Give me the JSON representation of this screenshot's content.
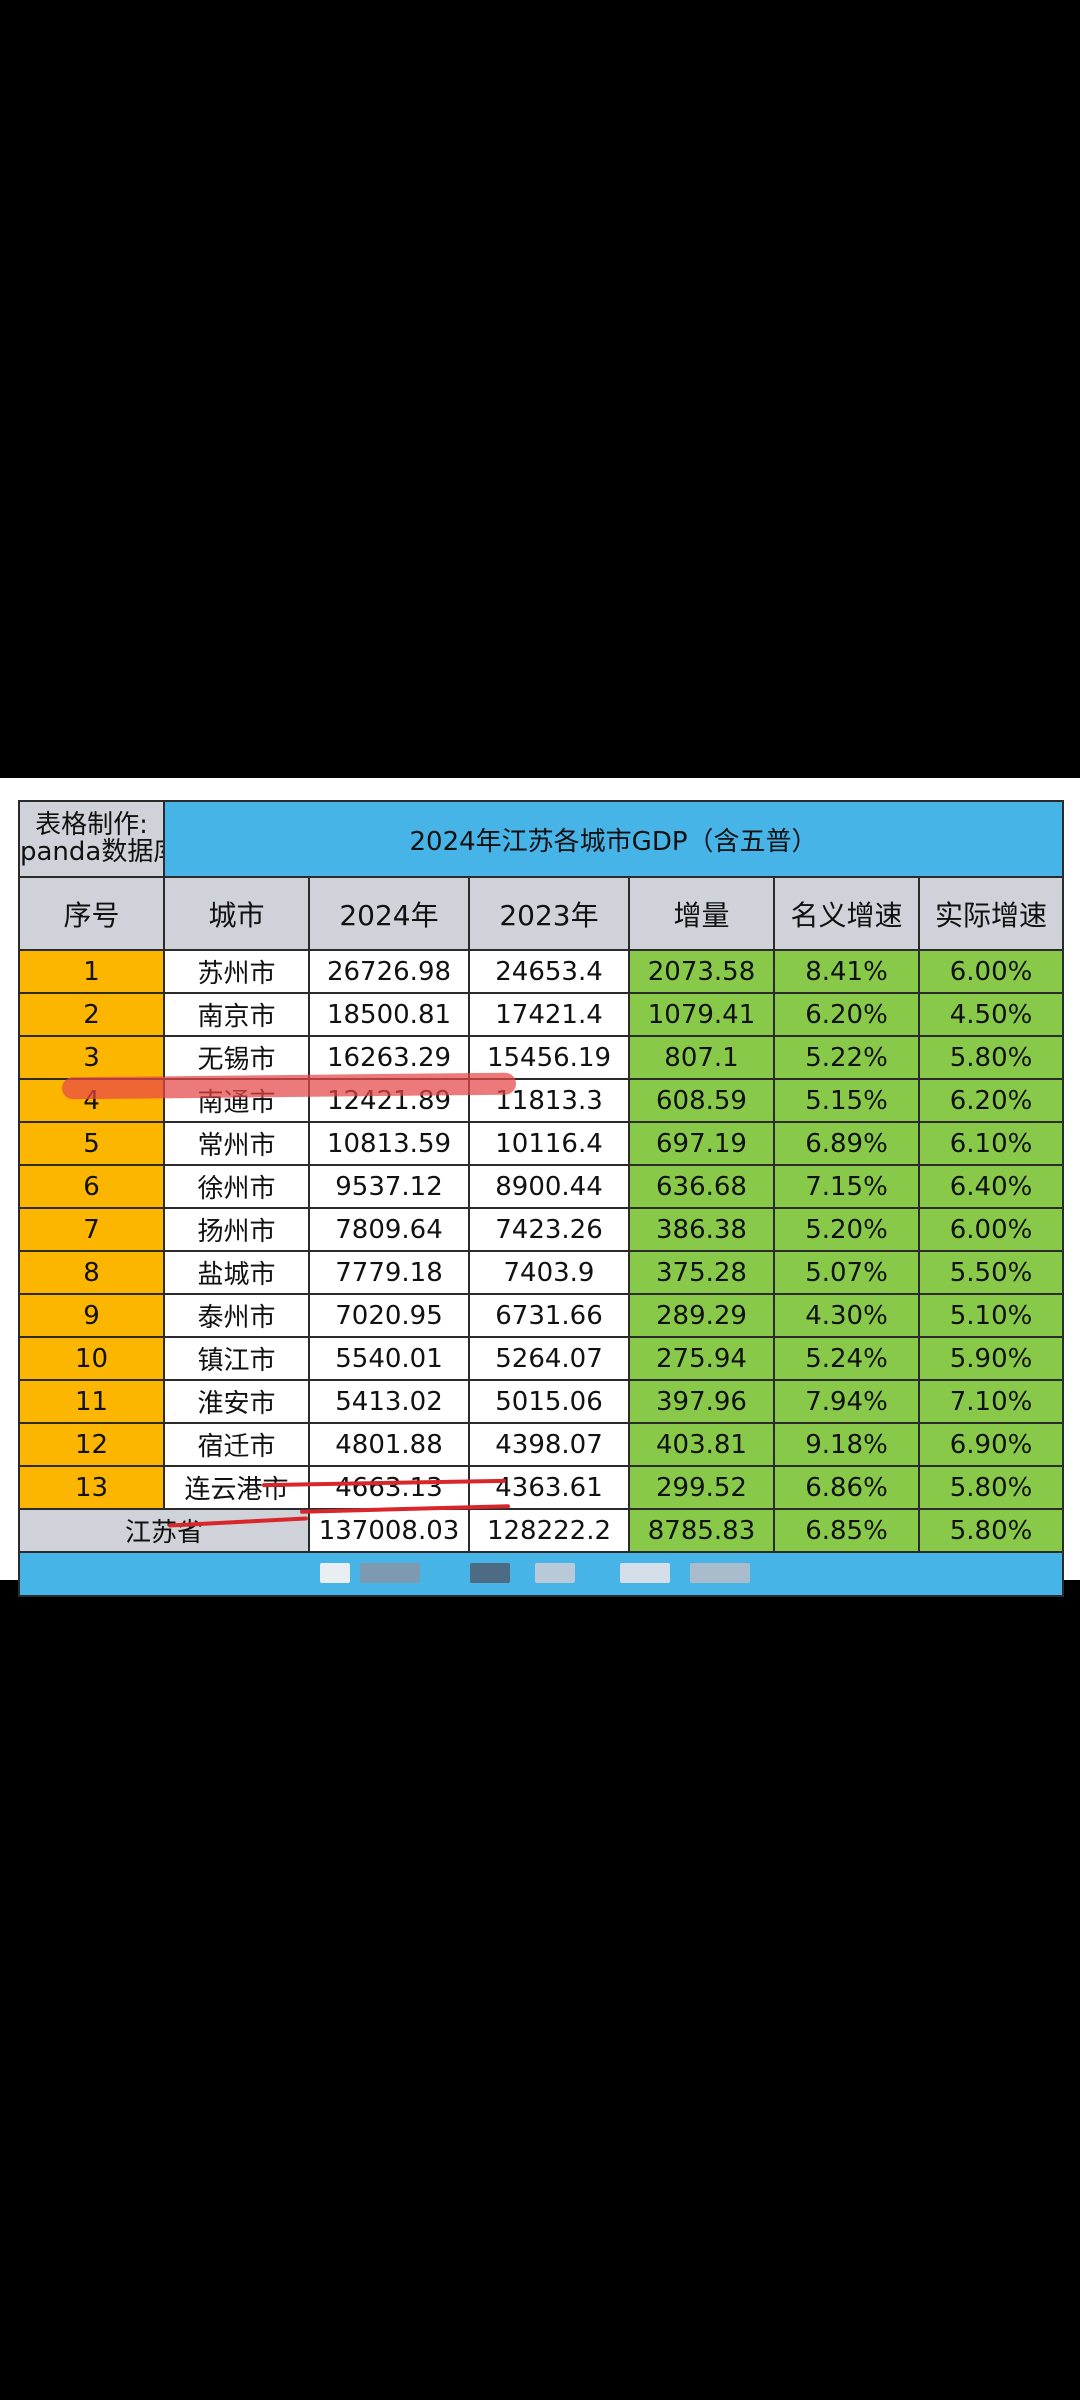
{
  "maker": {
    "line1": "表格制作:",
    "line2": "panda数据库"
  },
  "title": "2024年江苏各城市GDP（含五普）",
  "headers": [
    "序号",
    "城市",
    "2024年",
    "2023年",
    "增量",
    "名义增速",
    "实际增速"
  ],
  "rows": [
    {
      "rank": "1",
      "city": "苏州市",
      "y2024": "26726.98",
      "y2023": "24653.4",
      "increase": "2073.58",
      "nominal": "8.41%",
      "real": "6.00%"
    },
    {
      "rank": "2",
      "city": "南京市",
      "y2024": "18500.81",
      "y2023": "17421.4",
      "increase": "1079.41",
      "nominal": "6.20%",
      "real": "4.50%"
    },
    {
      "rank": "3",
      "city": "无锡市",
      "y2024": "16263.29",
      "y2023": "15456.19",
      "increase": "807.1",
      "nominal": "5.22%",
      "real": "5.80%"
    },
    {
      "rank": "4",
      "city": "南通市",
      "y2024": "12421.89",
      "y2023": "11813.3",
      "increase": "608.59",
      "nominal": "5.15%",
      "real": "6.20%"
    },
    {
      "rank": "5",
      "city": "常州市",
      "y2024": "10813.59",
      "y2023": "10116.4",
      "increase": "697.19",
      "nominal": "6.89%",
      "real": "6.10%"
    },
    {
      "rank": "6",
      "city": "徐州市",
      "y2024": "9537.12",
      "y2023": "8900.44",
      "increase": "636.68",
      "nominal": "7.15%",
      "real": "6.40%"
    },
    {
      "rank": "7",
      "city": "扬州市",
      "y2024": "7809.64",
      "y2023": "7423.26",
      "increase": "386.38",
      "nominal": "5.20%",
      "real": "6.00%"
    },
    {
      "rank": "8",
      "city": "盐城市",
      "y2024": "7779.18",
      "y2023": "7403.9",
      "increase": "375.28",
      "nominal": "5.07%",
      "real": "5.50%"
    },
    {
      "rank": "9",
      "city": "泰州市",
      "y2024": "7020.95",
      "y2023": "6731.66",
      "increase": "289.29",
      "nominal": "4.30%",
      "real": "5.10%"
    },
    {
      "rank": "10",
      "city": "镇江市",
      "y2024": "5540.01",
      "y2023": "5264.07",
      "increase": "275.94",
      "nominal": "5.24%",
      "real": "5.90%"
    },
    {
      "rank": "11",
      "city": "淮安市",
      "y2024": "5413.02",
      "y2023": "5015.06",
      "increase": "397.96",
      "nominal": "7.94%",
      "real": "7.10%"
    },
    {
      "rank": "12",
      "city": "宿迁市",
      "y2024": "4801.88",
      "y2023": "4398.07",
      "increase": "403.81",
      "nominal": "9.18%",
      "real": "6.90%"
    },
    {
      "rank": "13",
      "city": "连云港市",
      "y2024": "4663.13",
      "y2023": "4363.61",
      "increase": "299.52",
      "nominal": "6.86%",
      "real": "5.80%"
    }
  ],
  "total": {
    "label": "江苏省",
    "y2024": "137008.03",
    "y2023": "128222.2",
    "increase": "8785.83",
    "nominal": "6.85%",
    "real": "5.80%"
  },
  "colors": {
    "title_bg": "#47b4e8",
    "header_bg": "#cfd3d9",
    "rank_bg": "#fdb600",
    "green_bg": "#88c94a",
    "annotation_red": "#d8262b"
  }
}
